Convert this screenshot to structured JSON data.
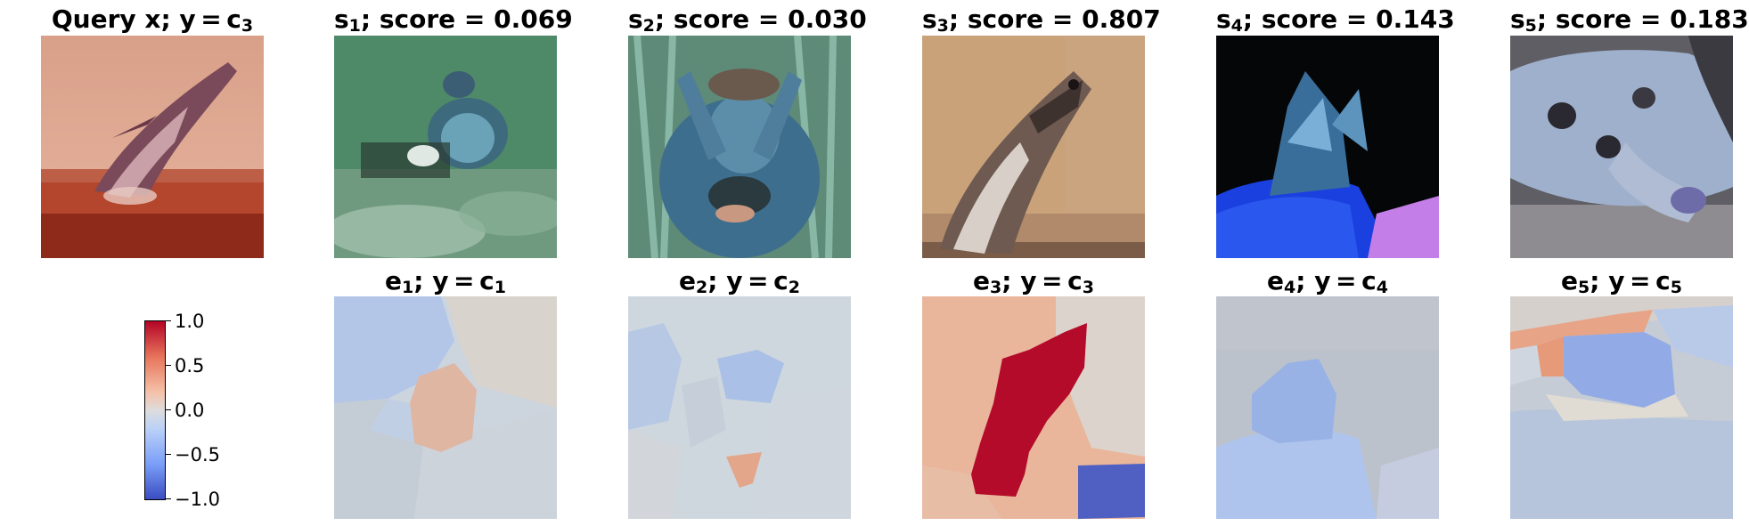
{
  "top_row": [
    {
      "prefix": "Query x; y = c",
      "sub": "3",
      "suffix": ""
    },
    {
      "prefix": "s",
      "sub": "1",
      "suffix": "; score = 0.069"
    },
    {
      "prefix": "s",
      "sub": "2",
      "suffix": "; score = 0.030"
    },
    {
      "prefix": "s",
      "sub": "3",
      "suffix": "; score = 0.807"
    },
    {
      "prefix": "s",
      "sub": "4",
      "suffix": "; score = 0.143"
    },
    {
      "prefix": "s",
      "sub": "5",
      "suffix": "; score = 0.183"
    }
  ],
  "bottom_row": [
    {
      "prefix": "e",
      "sub": "1",
      "mid": "; y = c",
      "sub2": "1"
    },
    {
      "prefix": "e",
      "sub": "2",
      "mid": "; y = c",
      "sub2": "2"
    },
    {
      "prefix": "e",
      "sub": "3",
      "mid": "; y = c",
      "sub2": "3"
    },
    {
      "prefix": "e",
      "sub": "4",
      "mid": "; y = c",
      "sub2": "4"
    },
    {
      "prefix": "e",
      "sub": "5",
      "mid": "; y = c",
      "sub2": "5"
    }
  ],
  "colorbar": {
    "ticks": [
      "1.0",
      "0.5",
      "0.0",
      "−0.5",
      "−1.0"
    ],
    "colormap": [
      "#3b4cc0",
      "#dddcdc",
      "#b40426"
    ]
  }
}
